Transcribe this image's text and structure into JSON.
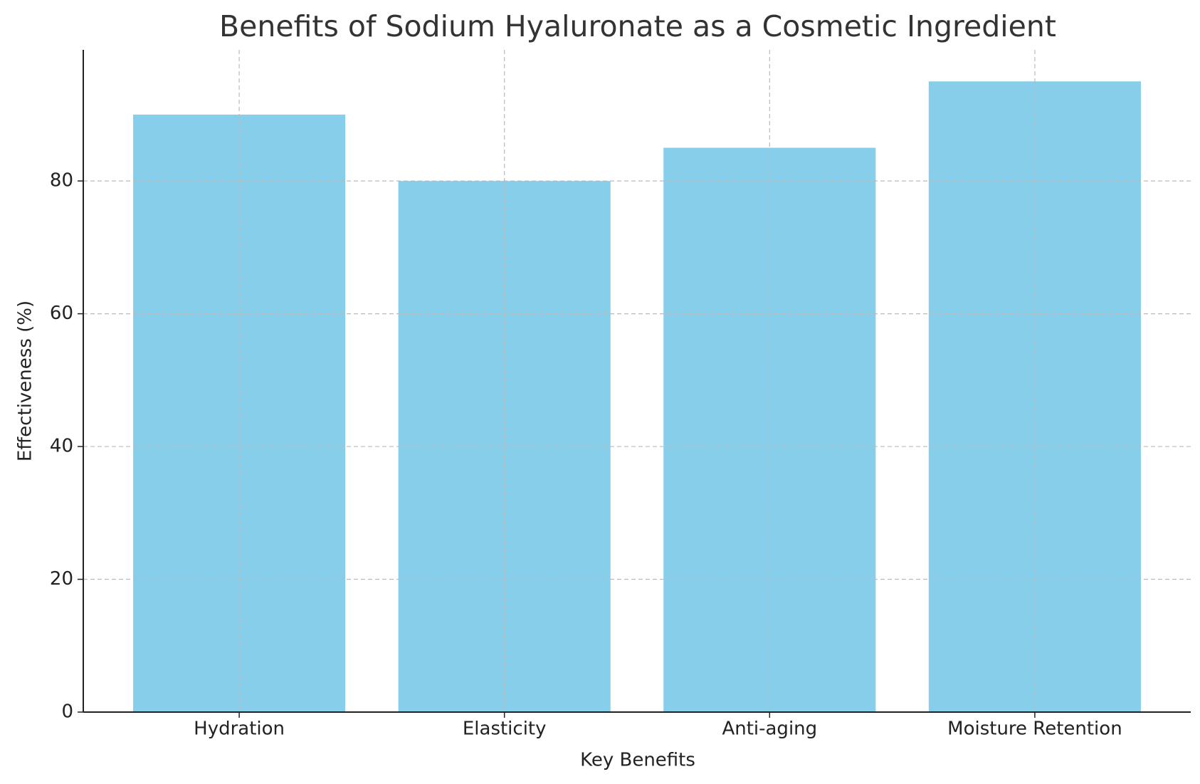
{
  "chart_data": {
    "type": "bar",
    "title": "Benefits of Sodium Hyaluronate as a Cosmetic Ingredient",
    "x_label": "Key Benefits",
    "y_label": "Effectiveness (%)",
    "categories": [
      "Hydration",
      "Elasticity",
      "Anti-aging",
      "Moisture Retention"
    ],
    "values": [
      90,
      80,
      85,
      95
    ],
    "color": "#87ceeb",
    "ylim": [
      0,
      99.75
    ],
    "yticks": [
      0,
      20,
      40,
      60,
      80
    ],
    "grid": true
  }
}
